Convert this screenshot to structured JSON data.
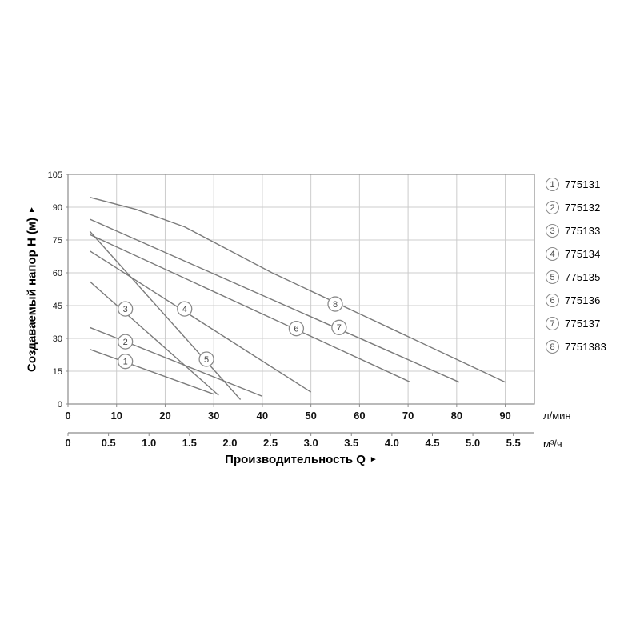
{
  "chart_data": {
    "type": "line",
    "title": "",
    "ylabel": "Создаваемый напор H (м)",
    "xlabel": "Производительность Q",
    "y_unit": "м",
    "x_units": [
      "л/мин",
      "м³/ч"
    ],
    "ylim": [
      0,
      105
    ],
    "xlim_lmin": [
      0,
      96
    ],
    "y_ticks": [
      0,
      15,
      30,
      45,
      60,
      75,
      90,
      105
    ],
    "x_ticks_lmin": [
      0,
      10,
      20,
      30,
      40,
      50,
      60,
      70,
      80,
      90
    ],
    "x_ticks_m3h": [
      "0",
      "0.5",
      "1.0",
      "1.5",
      "2.0",
      "2.5",
      "3.0",
      "3.5",
      "4.0",
      "4.5",
      "5.0",
      "5.5"
    ],
    "m3h_to_lmin": 16.667,
    "grid": true,
    "legend_position": "right",
    "series": [
      {
        "id": "1",
        "model": "775131",
        "points": [
          [
            4.5,
            25
          ],
          [
            30,
            4.5
          ]
        ],
        "marker_at": [
          11.8,
          19.5
        ]
      },
      {
        "id": "2",
        "model": "775132",
        "points": [
          [
            4.5,
            35
          ],
          [
            40,
            3.5
          ]
        ],
        "marker_at": [
          11.8,
          28.5
        ]
      },
      {
        "id": "3",
        "model": "775133",
        "points": [
          [
            4.5,
            56
          ],
          [
            31,
            4
          ]
        ],
        "marker_at": [
          11.8,
          43.5
        ]
      },
      {
        "id": "4",
        "model": "775134",
        "points": [
          [
            4.5,
            70
          ],
          [
            50,
            5.5
          ]
        ],
        "marker_at": [
          24,
          43.5
        ]
      },
      {
        "id": "5",
        "model": "775135",
        "points": [
          [
            4.5,
            79
          ],
          [
            35.5,
            2
          ]
        ],
        "marker_at": [
          28.5,
          20.5
        ]
      },
      {
        "id": "6",
        "model": "775136",
        "points": [
          [
            4.5,
            77.5
          ],
          [
            70.5,
            10
          ]
        ],
        "marker_at": [
          47,
          34.5
        ]
      },
      {
        "id": "7",
        "model": "775137",
        "points": [
          [
            4.5,
            84.5
          ],
          [
            80.5,
            10
          ]
        ],
        "marker_at": [
          55.8,
          35
        ]
      },
      {
        "id": "8",
        "model": "7751383",
        "points": [
          [
            4.5,
            94.5
          ],
          [
            14,
            89
          ],
          [
            24,
            81
          ],
          [
            33,
            70.5
          ],
          [
            42,
            60
          ],
          [
            90,
            10
          ]
        ],
        "marker_at": [
          55,
          45.7
        ]
      }
    ]
  },
  "axes": {
    "y_title": "Создаваемый напор H (м)",
    "y_arrow": "►",
    "x_title": "Производительность Q",
    "x_arrow": "►",
    "primary_unit": "л/мин",
    "secondary_unit": "м³/ч"
  }
}
